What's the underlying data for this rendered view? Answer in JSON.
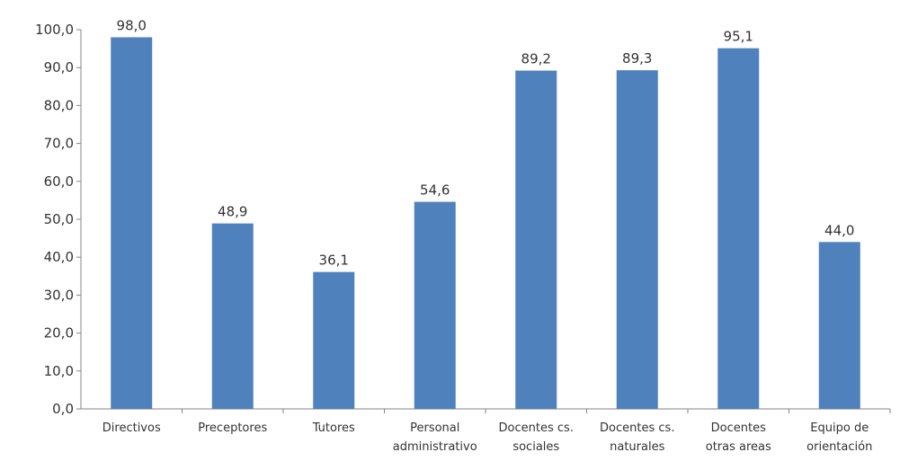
{
  "chart_data": {
    "type": "bar",
    "categories": [
      [
        "Directivos"
      ],
      [
        "Preceptores"
      ],
      [
        "Tutores"
      ],
      [
        "Personal",
        "administrativo"
      ],
      [
        "Docentes cs.",
        "sociales"
      ],
      [
        "Docentes cs.",
        "naturales"
      ],
      [
        "Docentes",
        "otras areas"
      ],
      [
        "Equipo de",
        "orientación"
      ]
    ],
    "values": [
      98.0,
      48.9,
      36.1,
      54.6,
      89.2,
      89.3,
      95.1,
      44.0
    ],
    "data_labels": [
      "98,0",
      "48,9",
      "36,1",
      "54,6",
      "89,2",
      "89,3",
      "95,1",
      "44,0"
    ],
    "y_ticks": [
      "0,0",
      "10,0",
      "20,0",
      "30,0",
      "40,0",
      "50,0",
      "60,0",
      "70,0",
      "80,0",
      "90,0",
      "100,0"
    ],
    "ylim": [
      0,
      100
    ],
    "grid": false,
    "legend": "none",
    "bar_color": "#4F81BD"
  }
}
